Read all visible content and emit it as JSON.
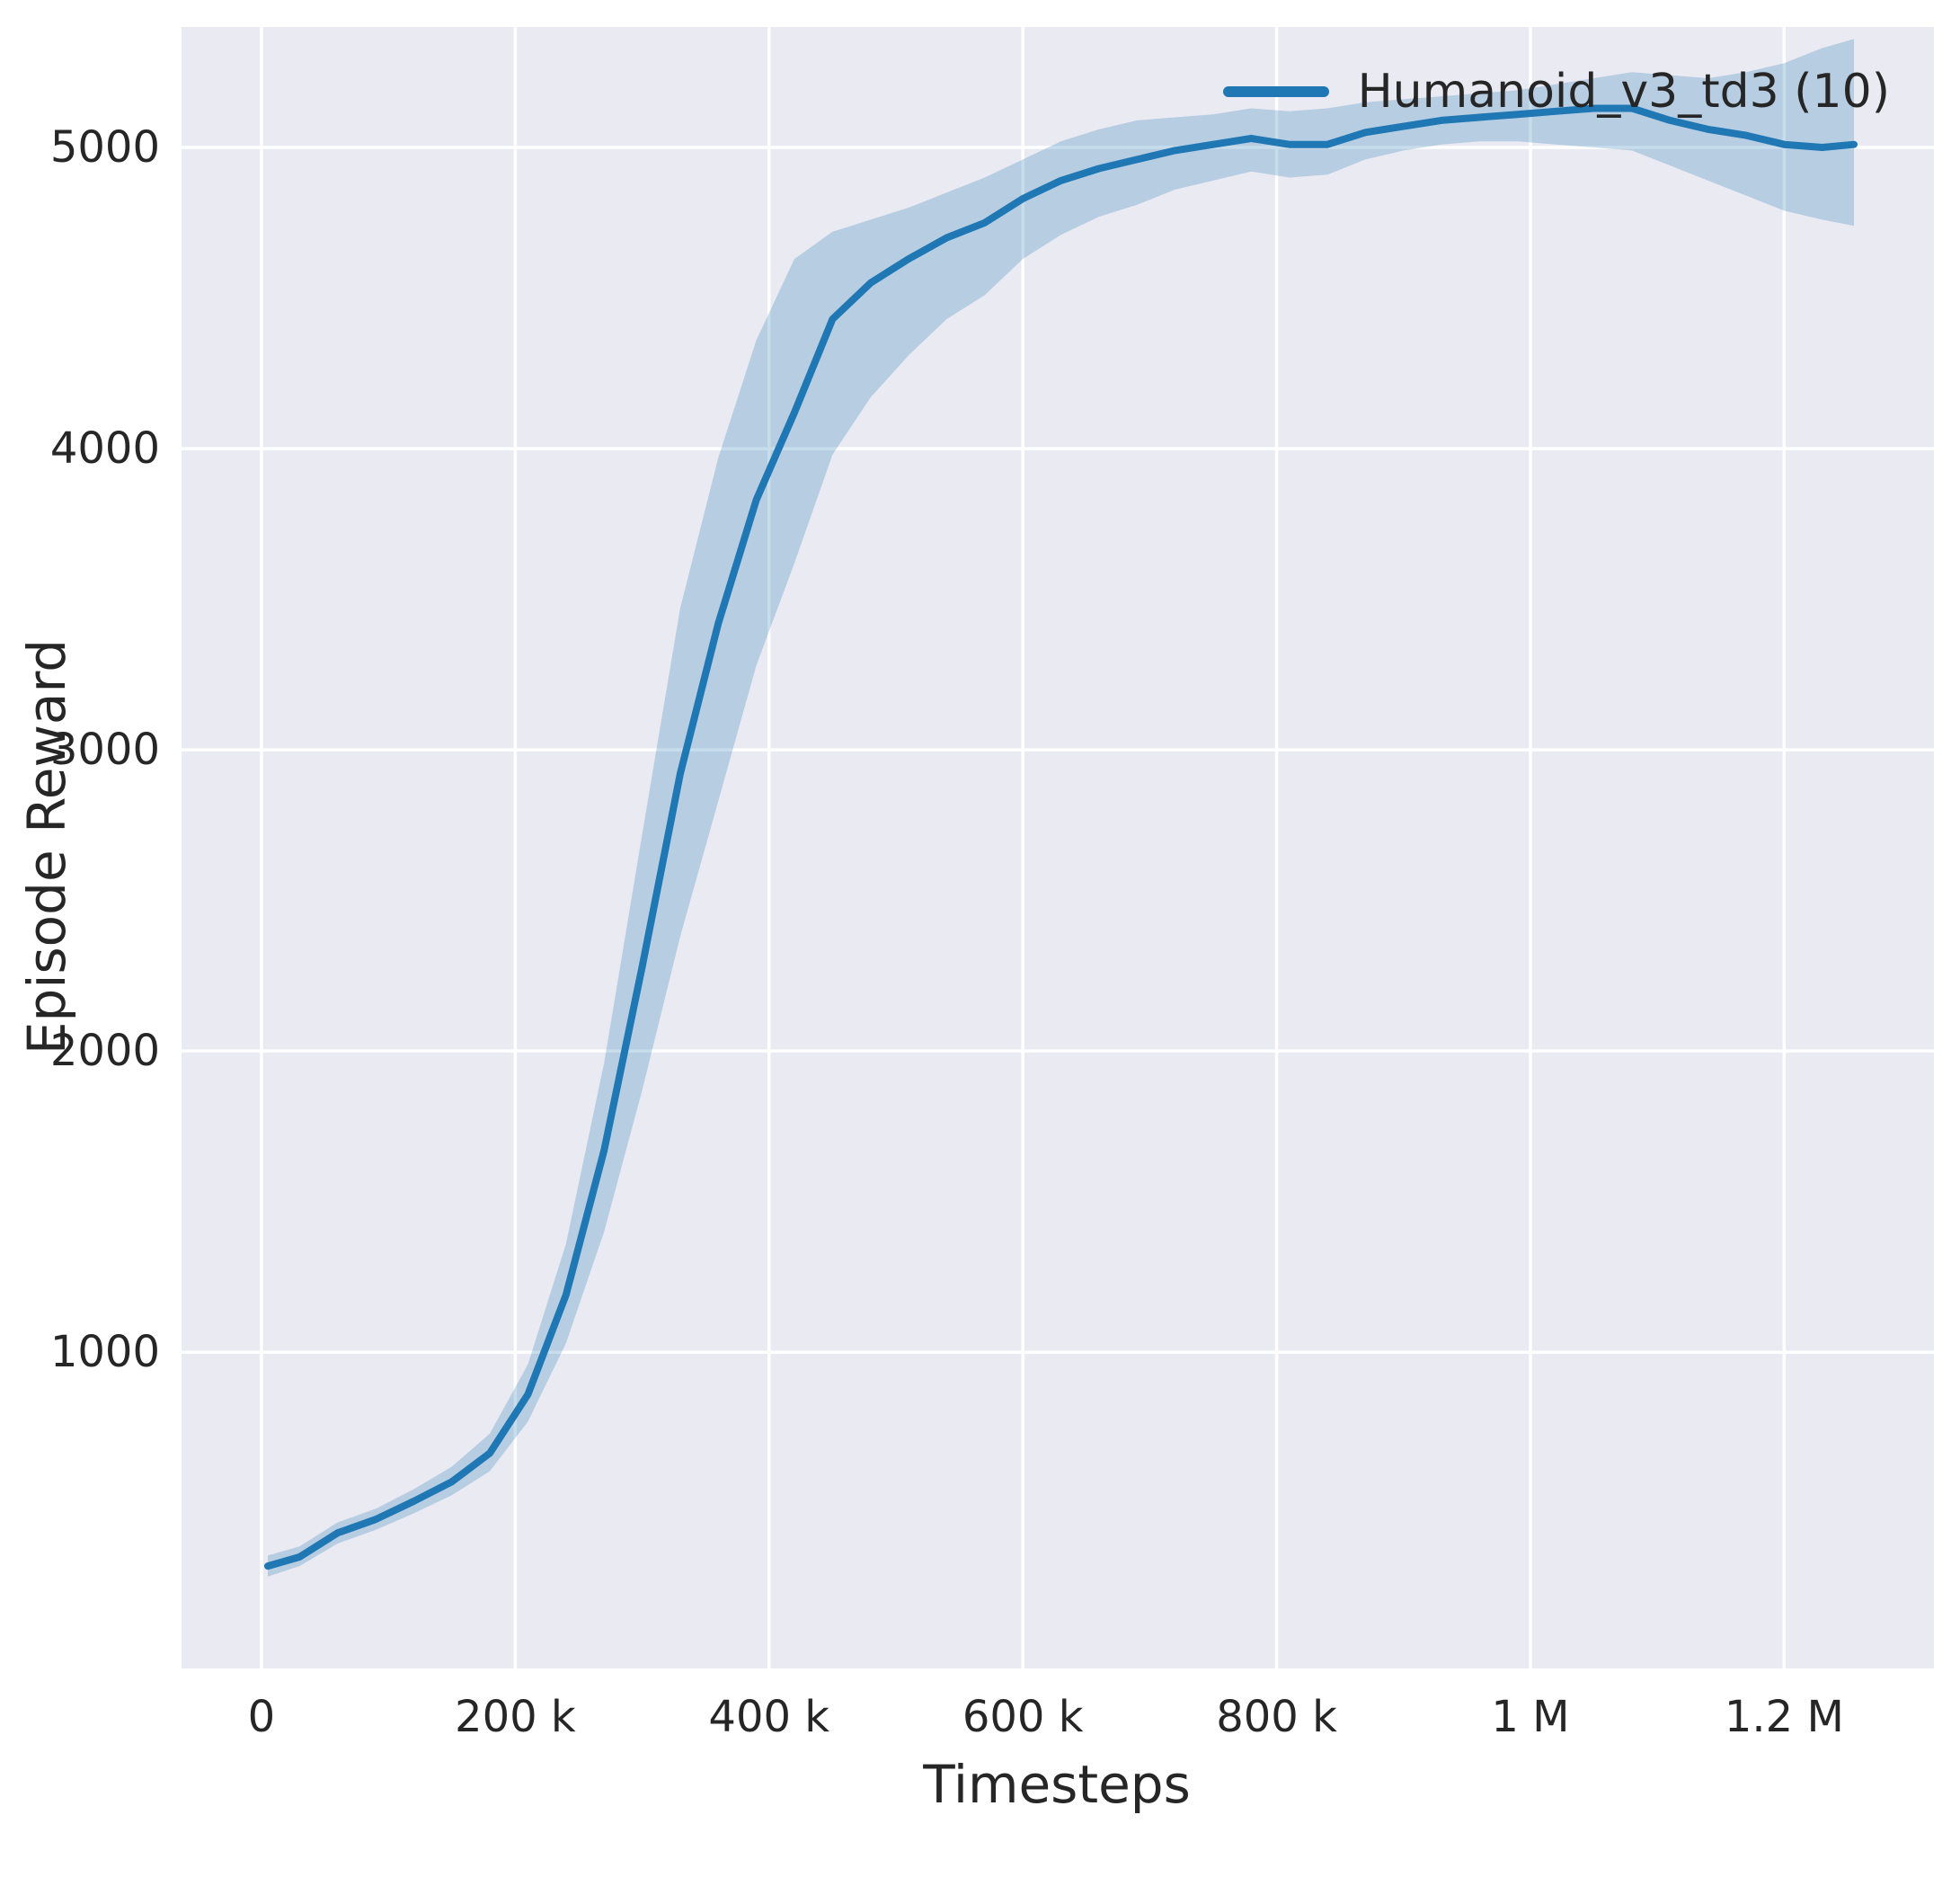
{
  "chart_data": {
    "type": "line",
    "title": "",
    "xlabel": "Timesteps",
    "ylabel": "Episode Reward",
    "xlim": [
      -63000,
      1318000
    ],
    "ylim": [
      -50,
      5400
    ],
    "grid": true,
    "colors": {
      "axes_bg": "#eaeaf2",
      "grid": "#ffffff",
      "line": "#1f77b4",
      "band": "#1f77b4",
      "text": "#262626"
    },
    "legend": {
      "position": "upper right",
      "entries": [
        {
          "label": "Humanoid_v3_td3 (10)",
          "color": "#1f77b4"
        }
      ]
    },
    "xticks": [
      {
        "value": 0,
        "label": "0"
      },
      {
        "value": 200000,
        "label": "200 k"
      },
      {
        "value": 400000,
        "label": "400 k"
      },
      {
        "value": 600000,
        "label": "600 k"
      },
      {
        "value": 800000,
        "label": "800 k"
      },
      {
        "value": 1000000,
        "label": "1 M"
      },
      {
        "value": 1200000,
        "label": "1.2 M"
      }
    ],
    "yticks": [
      {
        "value": 1000,
        "label": "1000"
      },
      {
        "value": 2000,
        "label": "2000"
      },
      {
        "value": 3000,
        "label": "3000"
      },
      {
        "value": 4000,
        "label": "4000"
      },
      {
        "value": 5000,
        "label": "5000"
      }
    ],
    "series": [
      {
        "name": "Humanoid_v3_td3 (10)",
        "color": "#1f77b4",
        "band_opacity": 0.25,
        "x": [
          5000,
          30000,
          60000,
          90000,
          120000,
          150000,
          180000,
          210000,
          240000,
          270000,
          300000,
          330000,
          360000,
          390000,
          420000,
          450000,
          480000,
          510000,
          540000,
          570000,
          600000,
          630000,
          660000,
          690000,
          720000,
          750000,
          780000,
          810000,
          840000,
          870000,
          900000,
          930000,
          960000,
          990000,
          1020000,
          1050000,
          1080000,
          1110000,
          1140000,
          1170000,
          1200000,
          1230000,
          1255000
        ],
        "mean": [
          290,
          320,
          400,
          445,
          505,
          570,
          665,
          860,
          1190,
          1670,
          2280,
          2920,
          3420,
          3830,
          4120,
          4430,
          4550,
          4630,
          4700,
          4750,
          4830,
          4890,
          4930,
          4960,
          4990,
          5010,
          5030,
          5010,
          5010,
          5050,
          5070,
          5090,
          5100,
          5110,
          5120,
          5130,
          5130,
          5090,
          5060,
          5040,
          5010,
          5000,
          5010
        ],
        "band_low": [
          255,
          290,
          365,
          410,
          465,
          525,
          605,
          770,
          1030,
          1400,
          1870,
          2380,
          2830,
          3280,
          3620,
          3980,
          4170,
          4310,
          4430,
          4510,
          4630,
          4710,
          4770,
          4810,
          4860,
          4890,
          4920,
          4900,
          4910,
          4960,
          4990,
          5010,
          5020,
          5020,
          5010,
          5000,
          4990,
          4940,
          4890,
          4840,
          4790,
          4760,
          4740
        ],
        "band_high": [
          325,
          355,
          435,
          480,
          545,
          620,
          730,
          960,
          1360,
          1960,
          2720,
          3470,
          3970,
          4360,
          4630,
          4720,
          4760,
          4800,
          4850,
          4900,
          4960,
          5020,
          5060,
          5090,
          5100,
          5110,
          5130,
          5120,
          5130,
          5150,
          5160,
          5170,
          5180,
          5190,
          5210,
          5230,
          5250,
          5240,
          5230,
          5250,
          5280,
          5330,
          5360
        ]
      }
    ]
  }
}
